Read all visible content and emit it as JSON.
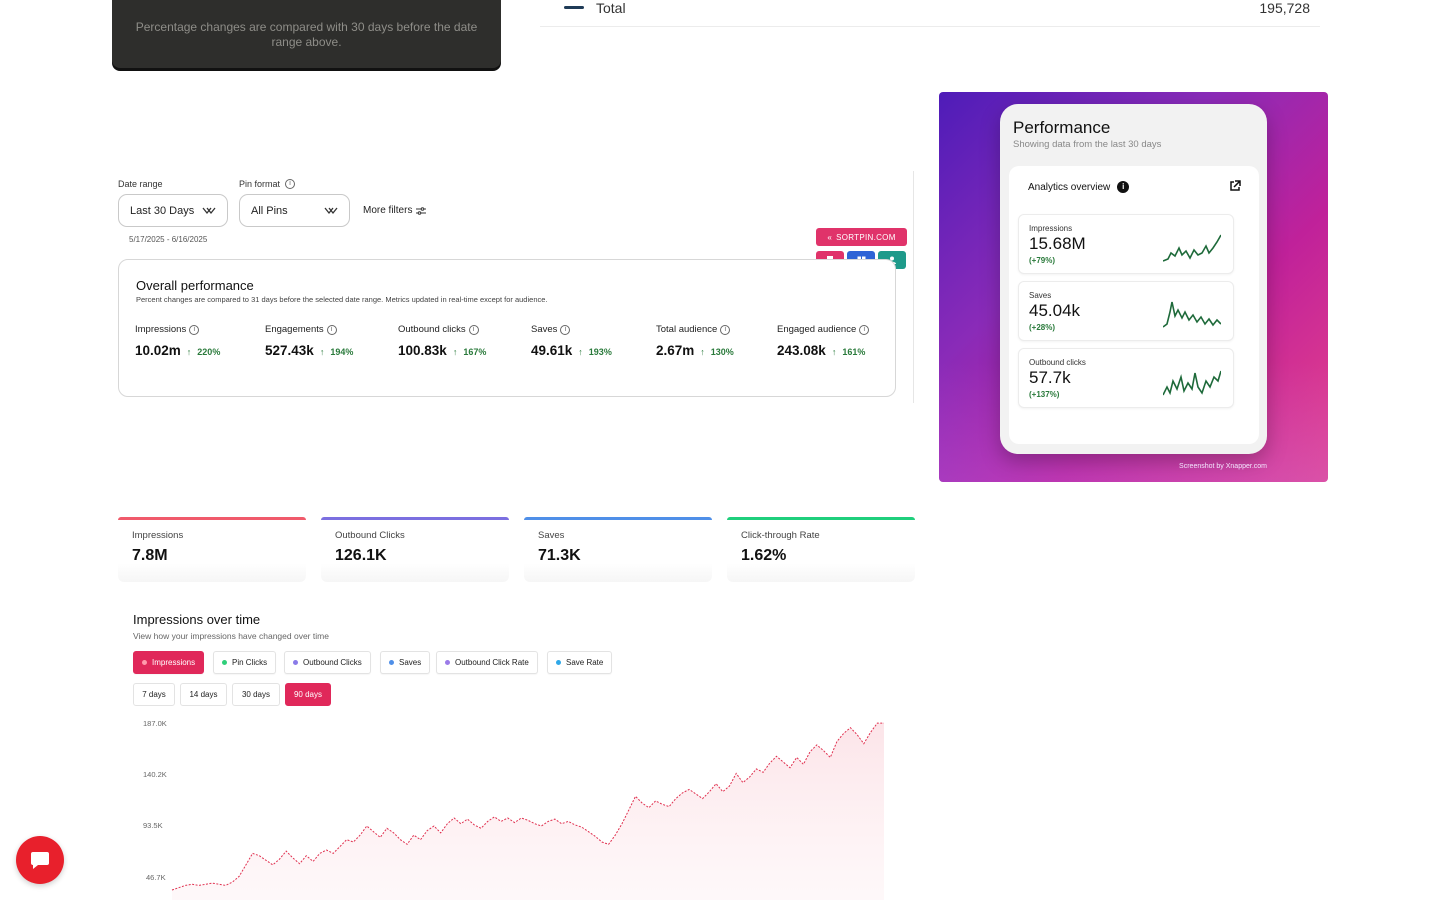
{
  "tooltip": {
    "text": "Percentage changes are compared with 30 days before the date range above."
  },
  "total_row": {
    "label": "Total",
    "value": "195,728"
  },
  "filters": {
    "date_range_label": "Date range",
    "date_range_value": "Last 30 Days",
    "date_range_dates": "5/17/2025 - 6/16/2025",
    "pin_format_label": "Pin format",
    "pin_format_value": "All Pins",
    "more_filters": "More filters"
  },
  "sortpin": {
    "label": "SORTPIN.COM"
  },
  "overall": {
    "title": "Overall performance",
    "subtitle": "Percent changes are compared to 31 days before the selected date range. Metrics updated in real-time except for audience.",
    "metrics": [
      {
        "label": "Impressions",
        "value": "10.02m",
        "change": "220%"
      },
      {
        "label": "Engagements",
        "value": "527.43k",
        "change": "194%"
      },
      {
        "label": "Outbound clicks",
        "value": "100.83k",
        "change": "167%"
      },
      {
        "label": "Saves",
        "value": "49.61k",
        "change": "193%"
      },
      {
        "label": "Total audience",
        "value": "2.67m",
        "change": "130%"
      },
      {
        "label": "Engaged audience",
        "value": "243.08k",
        "change": "161%"
      }
    ]
  },
  "promo": {
    "title": "Performance",
    "subtitle": "Showing data from the last 30 days",
    "overview_title": "Analytics overview",
    "cards": [
      {
        "label": "Impressions",
        "value": "15.68M",
        "change": "(+79%)"
      },
      {
        "label": "Saves",
        "value": "45.04k",
        "change": "(+28%)"
      },
      {
        "label": "Outbound clicks",
        "value": "57.7k",
        "change": "(+137%)"
      }
    ],
    "credit": "Screenshot by Xnapper.com"
  },
  "kpis": [
    {
      "label": "Impressions",
      "value": "7.8M",
      "color": "#f05a6b"
    },
    {
      "label": "Outbound Clicks",
      "value": "126.1K",
      "color": "#7b6fe0"
    },
    {
      "label": "Saves",
      "value": "71.3K",
      "color": "#4f8fe8"
    },
    {
      "label": "Click-through Rate",
      "value": "1.62%",
      "color": "#1fcf7c"
    }
  ],
  "impressions_over_time": {
    "title": "Impressions over time",
    "subtitle": "View how your impressions have changed over time",
    "metric_tabs": [
      {
        "label": "Impressions",
        "color": "#ffffff",
        "active": true
      },
      {
        "label": "Pin Clicks",
        "color": "#2fcf7a",
        "active": false
      },
      {
        "label": "Outbound Clicks",
        "color": "#8a7be8",
        "active": false
      },
      {
        "label": "Saves",
        "color": "#4f8fe8",
        "active": false
      },
      {
        "label": "Outbound Click Rate",
        "color": "#9b7be8",
        "active": false
      },
      {
        "label": "Save Rate",
        "color": "#2fa8e8",
        "active": false
      }
    ],
    "range_tabs": [
      {
        "label": "7 days",
        "active": false
      },
      {
        "label": "14 days",
        "active": false
      },
      {
        "label": "30 days",
        "active": false
      },
      {
        "label": "90 days",
        "active": true
      }
    ]
  },
  "chart_data": {
    "type": "line",
    "series": [
      {
        "values": [
          40000,
          42000,
          44000,
          45000,
          44000,
          45000,
          46000,
          45000,
          44000,
          47000,
          52000,
          62000,
          72000,
          70000,
          66000,
          62000,
          67000,
          74000,
          68000,
          63000,
          70000,
          65000,
          72000,
          75000,
          72000,
          78000,
          84000,
          82000,
          88000,
          96000,
          91000,
          86000,
          94000,
          90000,
          84000,
          80000,
          88000,
          84000,
          92000,
          96000,
          90000,
          98000,
          103000,
          98000,
          102000,
          97000,
          94000,
          100000,
          104000,
          100000,
          103000,
          99000,
          103000,
          101000,
          98000,
          96000,
          100000,
          102000,
          98000,
          100000,
          97000,
          95000,
          91000,
          87000,
          82000,
          80000,
          88000,
          98000,
          110000,
          122000,
          116000,
          112000,
          118000,
          115000,
          113000,
          120000,
          125000,
          128000,
          124000,
          120000,
          126000,
          133000,
          126000,
          131000,
          142000,
          134000,
          139000,
          146000,
          143000,
          151000,
          157000,
          152000,
          147000,
          156000,
          150000,
          161000,
          167000,
          162000,
          156000,
          170000,
          177000,
          182000,
          176000,
          168000,
          178000,
          186000,
          186000
        ]
      }
    ],
    "ylim": [
      40000,
      187000
    ],
    "yticks": [
      "187.0K",
      "140.2K",
      "93.5K",
      "46.7K"
    ]
  }
}
